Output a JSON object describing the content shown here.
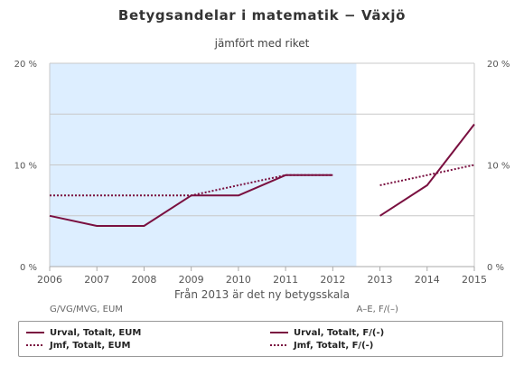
{
  "chart_data": {
    "type": "line",
    "title": "Betygsandelar i matematik − Växjö",
    "subtitle": "jämfört med riket",
    "categories": [
      "2006",
      "2007",
      "2008",
      "2009",
      "2010",
      "2011",
      "2012",
      "2013",
      "2014",
      "2015"
    ],
    "ylim": [
      0,
      20
    ],
    "y_ticks": [
      "0 %",
      "10 %",
      "20 %"
    ],
    "y_tick_values": [
      0,
      10,
      20
    ],
    "grid": true,
    "shaded_band": {
      "from": "2006",
      "to": "2012.5",
      "color": "#ddeeff"
    },
    "period_labels": {
      "left": "G/VG/MVG, EUM",
      "right": "A–E, F/(–)",
      "center": "Från 2013 är det ny betygsskala"
    },
    "series": [
      {
        "name": "Urval, Totalt, EUM",
        "style": "solid",
        "color": "#7a1040",
        "x": [
          "2006",
          "2007",
          "2008",
          "2009",
          "2010",
          "2011",
          "2012"
        ],
        "values": [
          5,
          4,
          4,
          7,
          7,
          9,
          9
        ]
      },
      {
        "name": "Jmf, Totalt, EUM",
        "style": "dotted",
        "color": "#7a1040",
        "x": [
          "2006",
          "2007",
          "2008",
          "2009",
          "2010",
          "2011",
          "2012"
        ],
        "values": [
          7,
          7,
          7,
          7,
          8,
          9,
          9
        ]
      },
      {
        "name": "Urval, Totalt, F/(-)",
        "style": "solid",
        "color": "#7a1040",
        "x": [
          "2013",
          "2014",
          "2015"
        ],
        "values": [
          5,
          8,
          14
        ]
      },
      {
        "name": "Jmf, Totalt, F/(-)",
        "style": "dotted",
        "color": "#7a1040",
        "x": [
          "2013",
          "2014",
          "2015"
        ],
        "values": [
          8,
          9,
          10
        ]
      }
    ]
  }
}
